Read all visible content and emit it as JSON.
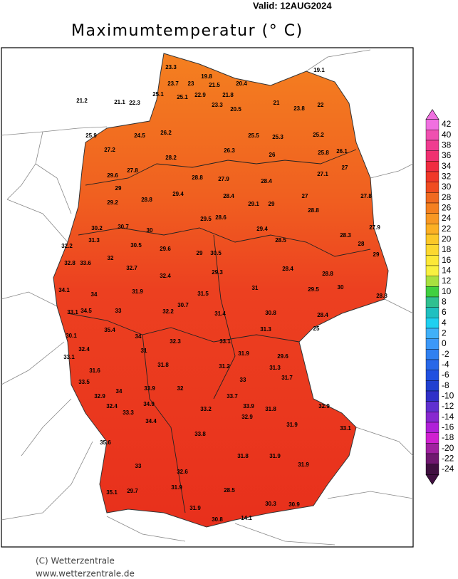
{
  "valid": "Valid:  12AUG2024",
  "title": "Maximumtemperatur (° C)",
  "colorbar": {
    "ticks": [
      42,
      40,
      38,
      36,
      34,
      32,
      30,
      28,
      26,
      24,
      22,
      20,
      18,
      16,
      14,
      12,
      10,
      8,
      6,
      4,
      2,
      0,
      -2,
      -4,
      -6,
      -8,
      -10,
      -12,
      -14,
      -16,
      -18,
      -20,
      -22,
      -24
    ],
    "colors": [
      "#f070e0",
      "#f050b0",
      "#f03c90",
      "#f03070",
      "#f02c40",
      "#f03828",
      "#f04c20",
      "#f06a20",
      "#f48020",
      "#f89824",
      "#fcb024",
      "#fcc828",
      "#fcd830",
      "#fce838",
      "#f8f040",
      "#a8e040",
      "#40d040",
      "#30c090",
      "#20c0c0",
      "#20d0f0",
      "#40b0f8",
      "#3c98f8",
      "#3080f0",
      "#2868e8",
      "#2050e0",
      "#2040d0",
      "#3030c8",
      "#6030d0",
      "#8828d0",
      "#b020d8",
      "#d020d0",
      "#a020a0",
      "#701870",
      "#401040"
    ]
  },
  "stations": [
    23.3,
    23.7,
    23.0,
    19.8,
    21.5,
    21.8,
    20.4,
    25.1,
    25.1,
    22.9,
    21.2,
    21.1,
    22.3,
    23.3,
    20.5,
    21.0,
    23.8,
    22.0,
    19.1,
    25.9,
    24.5,
    26.2,
    25.5,
    25.3,
    25.2,
    27.2,
    28.2,
    26.3,
    26.0,
    25.8,
    29.6,
    27.8,
    28.8,
    27.9,
    28.4,
    27.1,
    27.0,
    29.0,
    29.4,
    28.4,
    27.0,
    27.8,
    29.2,
    28.8,
    29.1,
    29.0,
    28.8,
    30.2,
    30.7,
    30.0,
    29.5,
    28.6,
    29.4,
    27.9,
    32.2,
    31.3,
    30.5,
    29.6,
    29.0,
    30.5,
    28.5,
    28.3,
    28.0,
    32.8,
    33.6,
    32.0,
    32.7,
    32.4,
    29.3,
    28.4,
    28.8,
    29.0,
    34.1,
    34.0,
    31.9,
    30.7,
    31.5,
    31.0,
    29.5,
    30.0,
    28.8,
    33.1,
    34.5,
    33.0,
    32.2,
    31.4,
    30.8,
    28.4,
    30.1,
    35.4,
    34.0,
    33.1,
    31.3,
    25.0,
    33.1,
    32.4,
    31.0,
    32.3,
    31.9,
    29.6,
    31.6,
    31.8,
    31.2,
    33.0,
    31.3,
    33.5,
    32.9,
    34.0,
    33.9,
    32.0,
    33.7,
    31.7,
    32.4,
    33.3,
    34.9,
    33.2,
    33.9,
    31.8,
    32.9,
    35.6,
    34.4,
    33.8,
    32.9,
    31.9,
    33.1,
    33.0,
    32.6,
    31.8,
    31.9,
    31.9,
    35.1,
    29.7,
    31.9,
    28.5,
    30.3,
    31.9,
    30.9,
    14.1,
    30.8,
    26.1
  ],
  "footer": [
    "(C) Wetterzentrale",
    "www.wetterzentrale.de"
  ]
}
